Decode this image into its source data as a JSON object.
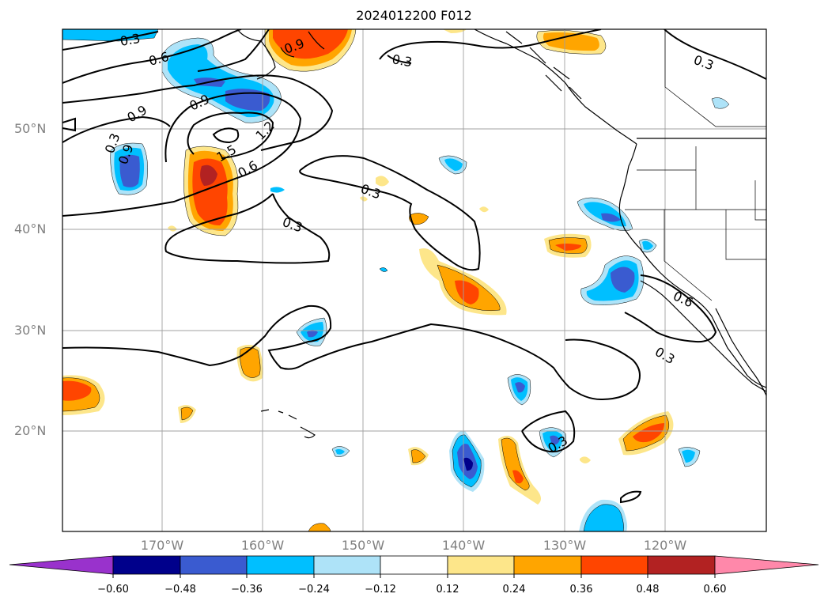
{
  "title": "2024012200 F012",
  "lat_labels": [
    "50°N",
    "40°N",
    "30°N",
    "20°N"
  ],
  "lon_labels": [
    "170°W",
    "160°W",
    "150°W",
    "140°W",
    "130°W",
    "120°W"
  ],
  "contour_labels": [
    "0.3",
    "0.6",
    "0.9",
    "0.9",
    "0.9",
    "1.2",
    "1.5",
    "0.6",
    "0.3",
    "0.3",
    "0.3",
    "0.3",
    "0.6",
    "0.3",
    "0.3",
    "0.3",
    "0.9"
  ],
  "colorbar": {
    "tick_labels": [
      "−0.60",
      "−0.48",
      "−0.36",
      "−0.24",
      "−0.12",
      "0.12",
      "0.24",
      "0.36",
      "0.48",
      "0.60"
    ],
    "colors": [
      "#9932cc",
      "#00008b",
      "#3a5bd0",
      "#00bfff",
      "#aee3f8",
      "#ffffff",
      "#fde68a",
      "#ffa500",
      "#ff4500",
      "#b22222",
      "#ff88aa"
    ]
  }
}
